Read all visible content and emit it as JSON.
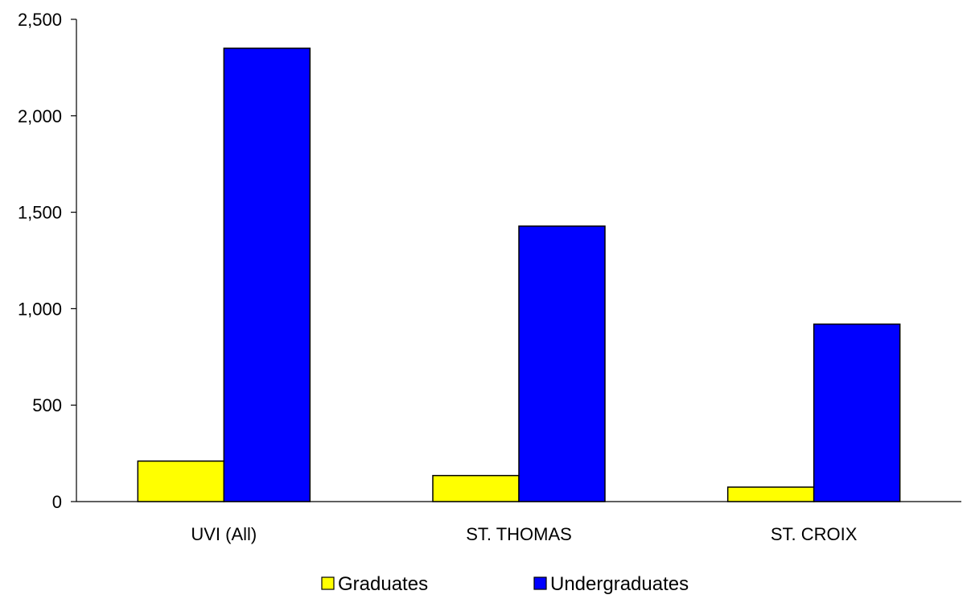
{
  "chart_data": {
    "type": "bar",
    "title": "",
    "xlabel": "",
    "ylabel": "",
    "categories": [
      "UVI (All)",
      "ST. THOMAS",
      "ST. CROIX"
    ],
    "series": [
      {
        "name": "Graduates",
        "color": "#FFFF00",
        "values": [
          210,
          135,
          75
        ]
      },
      {
        "name": "Undergraduates",
        "color": "#0000FF",
        "values": [
          2350,
          1428,
          920
        ]
      }
    ],
    "ylim": [
      0,
      2500
    ],
    "yticks": [
      0,
      500,
      1000,
      1500,
      2000,
      2500
    ],
    "ytick_labels": [
      "0",
      "500",
      "1,000",
      "1,500",
      "2,000",
      "2,500"
    ],
    "grid": false,
    "legend_position": "bottom"
  }
}
